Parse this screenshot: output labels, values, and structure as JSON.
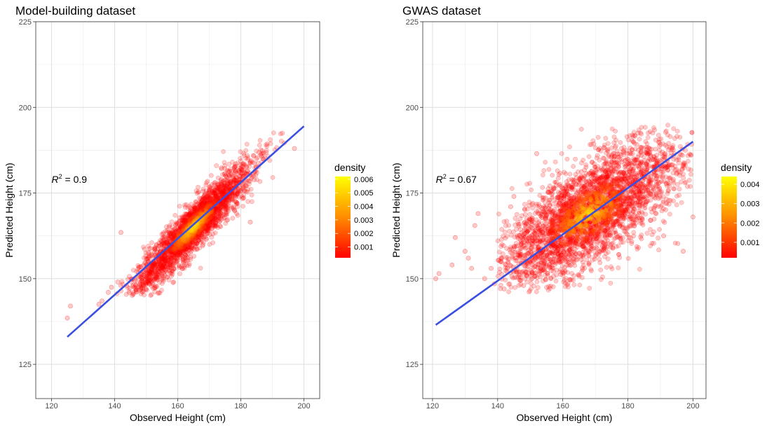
{
  "chart_data": [
    {
      "type": "scatter",
      "title": "Model-building dataset",
      "xlabel": "Observed Height (cm)",
      "ylabel": "Predicted Height (cm)",
      "xlim": [
        115,
        205
      ],
      "ylim": [
        115,
        225
      ],
      "x_ticks": [
        120,
        140,
        160,
        180,
        200
      ],
      "y_ticks": [
        125,
        150,
        175,
        200,
        225
      ],
      "grid": true,
      "annotation": {
        "r_symbol": "R",
        "superscript": "2",
        "value_text": " = 0.9",
        "x": 120,
        "y": 179
      },
      "legend": {
        "title": "density",
        "ticks": [
          0.001,
          0.002,
          0.003,
          0.004,
          0.005,
          0.006
        ],
        "tick_labels": [
          "0.001",
          "0.002",
          "0.003",
          "0.004",
          "0.005",
          "0.006"
        ],
        "range": [
          0.0002,
          0.0062
        ],
        "colors": [
          "#FF0000",
          "#FFFF00"
        ],
        "placement": "right"
      },
      "fit_line": {
        "color": "#3A4FE0",
        "x": [
          125,
          200
        ],
        "y": [
          133.0,
          194.5
        ]
      },
      "cloud": {
        "center": [
          165,
          165
        ],
        "sd_major": 13.5,
        "sd_minor": 2.6,
        "angle_deg": 45,
        "n": 2400,
        "x_range": [
          140,
          200
        ],
        "y_range": [
          145,
          193
        ]
      },
      "outliers": [
        [
          125,
          138.5
        ],
        [
          126,
          142
        ],
        [
          135,
          142.5
        ],
        [
          136,
          143.5
        ],
        [
          138,
          146
        ],
        [
          139,
          147.5
        ],
        [
          141,
          149
        ],
        [
          142,
          163.5
        ],
        [
          183,
          166.5
        ],
        [
          178,
          170
        ],
        [
          197,
          188
        ]
      ],
      "point_color": "#FF0000"
    },
    {
      "type": "scatter",
      "title": "GWAS dataset",
      "xlabel": "Observed Height (cm)",
      "ylabel": "Predicted Height (cm)",
      "xlim": [
        117,
        204
      ],
      "ylim": [
        115,
        225
      ],
      "x_ticks": [
        120,
        140,
        160,
        180,
        200
      ],
      "y_ticks": [
        125,
        150,
        175,
        200,
        225
      ],
      "grid": true,
      "annotation": {
        "r_symbol": "R",
        "superscript": "2",
        "value_text": " = 0.67",
        "x": 121,
        "y": 179
      },
      "legend": {
        "title": "density",
        "ticks": [
          0.001,
          0.002,
          0.003,
          0.004
        ],
        "tick_labels": [
          "0.001",
          "0.002",
          "0.003",
          "0.004"
        ],
        "range": [
          0.0002,
          0.0044
        ],
        "colors": [
          "#FF0000",
          "#FFFF00"
        ],
        "placement": "right"
      },
      "fit_line": {
        "color": "#3A4FE0",
        "x": [
          121,
          200
        ],
        "y": [
          136.5,
          190
        ]
      },
      "cloud": {
        "center": [
          168,
          169
        ],
        "sd_major": 17,
        "sd_minor": 6.5,
        "angle_deg": 35,
        "n": 3200,
        "x_range": [
          140,
          200
        ],
        "y_range": [
          146,
          195
        ]
      },
      "outliers": [
        [
          121,
          150
        ],
        [
          122,
          151.5
        ],
        [
          126,
          154
        ],
        [
          127,
          162
        ],
        [
          130,
          158
        ],
        [
          131,
          156
        ],
        [
          132,
          153
        ],
        [
          133,
          165.5
        ],
        [
          134,
          169
        ],
        [
          136,
          150
        ],
        [
          138,
          153
        ],
        [
          139,
          148.5
        ],
        [
          142,
          147
        ],
        [
          144,
          171
        ],
        [
          145,
          174
        ],
        [
          148,
          148
        ],
        [
          152,
          186.5
        ],
        [
          187,
          167
        ],
        [
          191,
          162.5
        ],
        [
          197,
          158
        ],
        [
          200,
          168
        ]
      ],
      "point_color": "#FF0000"
    }
  ]
}
